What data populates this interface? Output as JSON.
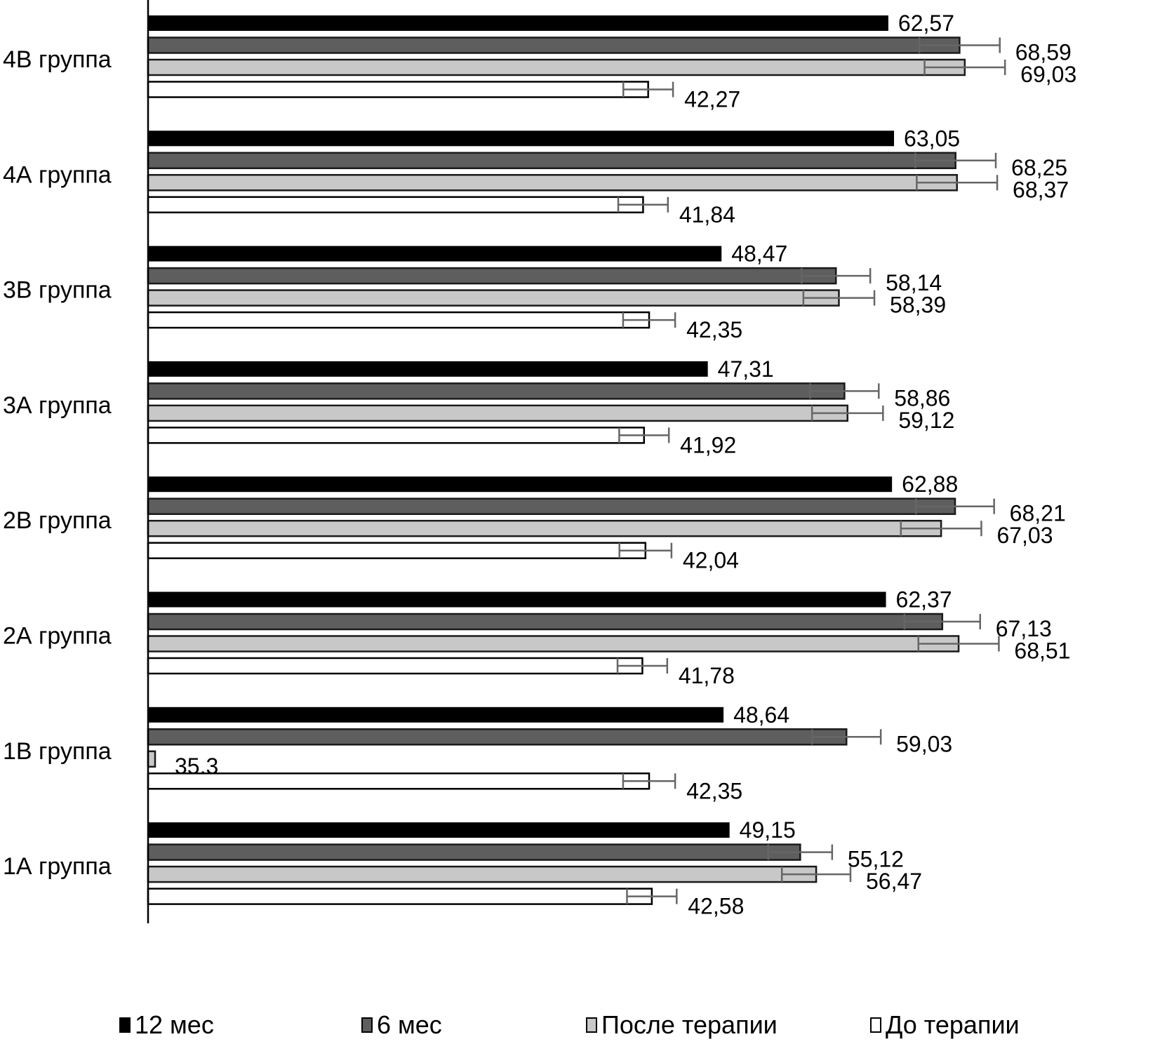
{
  "chart_data": {
    "type": "bar",
    "orientation": "horizontal",
    "title": "",
    "xlabel": "",
    "ylabel": "",
    "xlim": [
      0,
      75
    ],
    "grid": false,
    "legend_position": "bottom",
    "decimal_separator": ",",
    "categories": [
      "4В группа",
      "4А группа",
      "3В группа",
      "3А группа",
      "2В группа",
      "2А группа",
      "1В группа",
      "1А группа"
    ],
    "series": [
      {
        "name": "12 мес",
        "color": "#000000",
        "values": [
          62.57,
          63.05,
          48.47,
          47.31,
          62.88,
          62.37,
          48.64,
          49.15
        ],
        "labels": [
          "62,57",
          "63,05",
          "48,47",
          "47,31",
          "62,88",
          "62,37",
          "48,64",
          "49,15"
        ],
        "error": [
          null,
          null,
          null,
          null,
          null,
          null,
          null,
          null
        ]
      },
      {
        "name": "6 мес",
        "color": "#5e5e5e",
        "values": [
          68.59,
          68.25,
          58.14,
          58.86,
          68.21,
          67.13,
          59.03,
          55.12
        ],
        "labels": [
          "68,59",
          "68,25",
          "58,14",
          "58,86",
          "68,21",
          "67,13",
          "59,03",
          "55,12"
        ],
        "error": [
          3.4,
          3.4,
          2.9,
          2.9,
          3.3,
          3.2,
          2.9,
          2.7
        ]
      },
      {
        "name": "После терапии",
        "color": "#c8c8c8",
        "values": [
          69.03,
          68.37,
          58.39,
          59.12,
          67.03,
          68.51,
          35.3,
          56.47
        ],
        "labels": [
          "69,03",
          "68,37",
          "58,39",
          "59,12",
          "67,03",
          "68,51",
          "35,3",
          "56,47"
        ],
        "error": [
          3.4,
          3.4,
          3.0,
          3.0,
          3.4,
          3.4,
          null,
          2.9
        ],
        "rendered_stub": [
          false,
          false,
          false,
          false,
          false,
          false,
          true,
          false
        ]
      },
      {
        "name": "До терапии",
        "color": "#ffffff",
        "values": [
          42.27,
          41.84,
          42.35,
          41.92,
          42.04,
          41.78,
          42.35,
          42.58
        ],
        "labels": [
          "42,27",
          "41,84",
          "42,35",
          "41,92",
          "42,04",
          "41,78",
          "42,35",
          "42,58"
        ],
        "error": [
          2.1,
          2.1,
          2.2,
          2.1,
          2.2,
          2.1,
          2.2,
          2.1
        ]
      }
    ]
  }
}
